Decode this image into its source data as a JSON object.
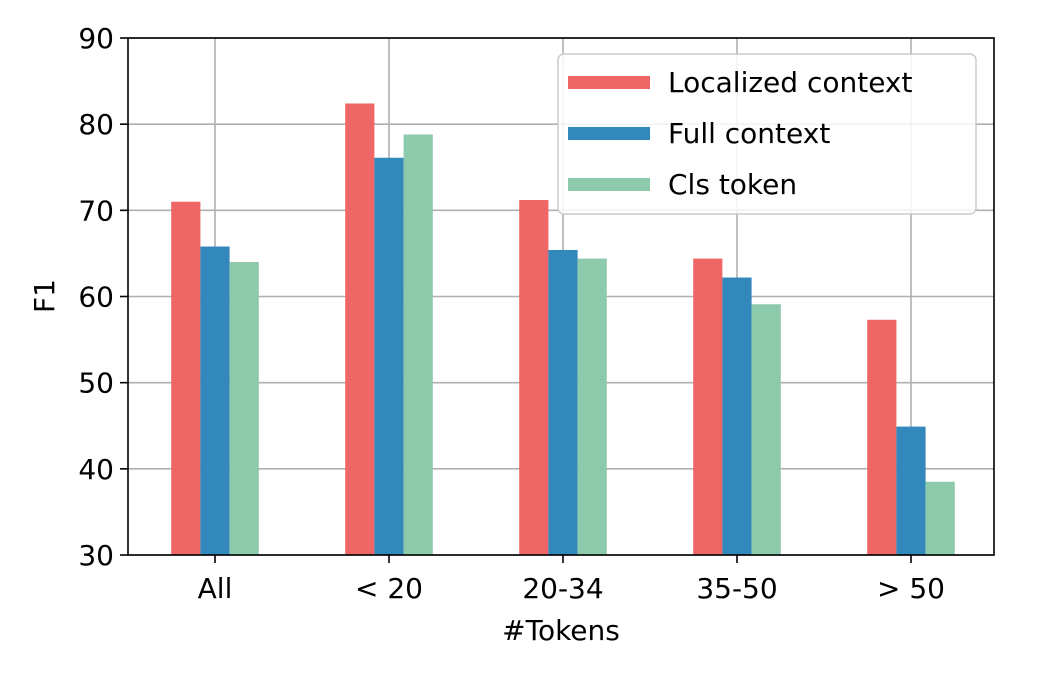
{
  "chart_data": {
    "type": "bar",
    "title": "",
    "xlabel": "#Tokens",
    "ylabel": "F1",
    "categories": [
      "All",
      "< 20",
      "20-34",
      "35-50",
      "> 50"
    ],
    "series": [
      {
        "name": "Localized context",
        "color": "#ee6666",
        "values": [
          71.0,
          82.4,
          71.2,
          64.4,
          57.3
        ]
      },
      {
        "name": "Full context",
        "color": "#3388bb",
        "values": [
          65.8,
          76.1,
          65.4,
          62.2,
          44.9
        ]
      },
      {
        "name": "Cls token",
        "color": "#8dc9ab",
        "values": [
          64.0,
          78.8,
          64.4,
          59.1,
          38.5
        ]
      }
    ],
    "ylim": [
      30,
      90
    ],
    "yticks": [
      30,
      40,
      50,
      60,
      70,
      80,
      90
    ],
    "grid": true,
    "legend_position": "top-right"
  }
}
